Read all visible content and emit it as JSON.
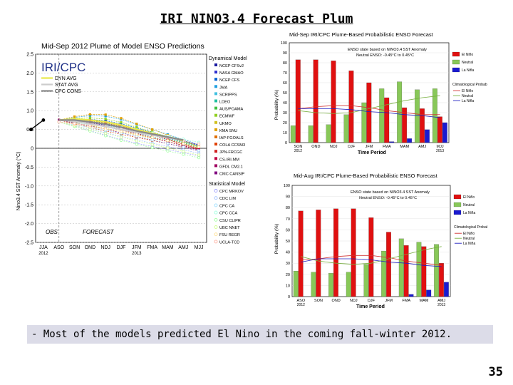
{
  "slide": {
    "title": "IRI NINO3.4 Forecast Plum",
    "caption": "- Most of the models predicted El Nino in the coming fall-winter 2012.",
    "page_number": "35",
    "iri_label": "IRI/CPC"
  },
  "chart_data": [
    {
      "type": "line",
      "title": "Mid-Sep 2012 Plume of Model ENSO Predictions",
      "ylabel": "Nino3.4 SST Anomaly (°C)",
      "ylim": [
        -2.5,
        2.5
      ],
      "yticks": [
        "2.5",
        "2.0",
        "1.5",
        "1.0",
        "0.5",
        "0",
        "-0.5",
        "-1.0",
        "-1.5",
        "-2.0",
        "-2.5"
      ],
      "categories": [
        "JJA",
        "ASO",
        "SON",
        "OND",
        "NDJ",
        "DJF",
        "JFM",
        "FMA",
        "MAM",
        "AMJ",
        "MJJ"
      ],
      "xtick_labels": [
        "JJA",
        "ASO",
        "SON",
        "OND",
        "NDJ",
        "DJF",
        "JFM",
        "FMA",
        "MAM",
        "AMJ",
        "MJJ"
      ],
      "xsub_labels": [
        "2012",
        "2013"
      ],
      "obs_label": "OBS",
      "forecast_label": "FORECAST",
      "observed": [
        0.5,
        0.75
      ],
      "averages": [
        {
          "name": "DYN AVG",
          "color": "#e8e84a",
          "values": [
            0.75,
            0.78,
            0.75,
            0.7,
            0.62,
            0.5,
            0.4,
            0.3,
            0.2
          ]
        },
        {
          "name": "STAT AVG",
          "color": "#cccccc",
          "values": [
            0.75,
            0.72,
            0.65,
            0.58,
            0.5,
            0.42,
            0.35,
            0.28,
            0.22
          ]
        },
        {
          "name": "CPC CONS",
          "color": "#888888",
          "values": [
            0.75,
            0.75,
            0.7,
            0.64,
            0.56,
            0.46,
            0.38,
            0.3,
            0.22
          ]
        }
      ],
      "dynamical_title": "Dynamical Model",
      "dynamical_models": [
        {
          "name": "NCEP CFSv2",
          "color": "#1a1aa0"
        },
        {
          "name": "NASA GMAO",
          "color": "#3030d0"
        },
        {
          "name": "NCEP CFS",
          "color": "#0060d0"
        },
        {
          "name": "JMA",
          "color": "#20a0e0"
        },
        {
          "name": "SCRIPPS",
          "color": "#40c0e0"
        },
        {
          "name": "LDEO",
          "color": "#20c0a0"
        },
        {
          "name": "AUS/POAMA",
          "color": "#40c040"
        },
        {
          "name": "ECMWF",
          "color": "#90d020"
        },
        {
          "name": "UKMO",
          "color": "#d0c020"
        },
        {
          "name": "KMA SNU",
          "color": "#e0a000"
        },
        {
          "name": "IAP-FGOALS",
          "color": "#e07000"
        },
        {
          "name": "COLA CCSM3",
          "color": "#e04000"
        },
        {
          "name": "JPN-FRCGC",
          "color": "#d02020"
        },
        {
          "name": "CS-IRI-MM",
          "color": "#c00040"
        },
        {
          "name": "GFDL CM2.1",
          "color": "#a00060"
        },
        {
          "name": "CMC CANSIP",
          "color": "#800080"
        }
      ],
      "statistical_title": "Statistical Model",
      "statistical_models": [
        {
          "name": "CPC MRKOV",
          "color": "#a0a0ff"
        },
        {
          "name": "CDC LIM",
          "color": "#a0c0ff"
        },
        {
          "name": "CPC CA",
          "color": "#a0e0ff"
        },
        {
          "name": "CPC CCA",
          "color": "#a0ffe0"
        },
        {
          "name": "CSU CLIPR",
          "color": "#a0ffa0"
        },
        {
          "name": "UBC NNET",
          "color": "#d0ff90"
        },
        {
          "name": "FSU REGR",
          "color": "#ffe090"
        },
        {
          "name": "UCLA-TCD",
          "color": "#ffb0a0"
        }
      ]
    },
    {
      "type": "bar",
      "title": "Mid-Sep IRI/CPC Plume-Based Probabilistic ENSO Forecast",
      "subtitle": "ENSO state based on NINO3.4 SST Anomaly",
      "neutral_note": "Neutral ENSO: -0.45°C to 0.45°C",
      "ylabel": "Probability (%)",
      "xlabel": "Time Period",
      "ylim": [
        0,
        100
      ],
      "yticks": [
        "0",
        "10",
        "20",
        "30",
        "40",
        "50",
        "60",
        "70",
        "80",
        "90",
        "100"
      ],
      "categories": [
        "SON",
        "OND",
        "NDJ",
        "DJF",
        "JFM",
        "FMA",
        "MAM",
        "AMJ",
        "MJJ"
      ],
      "xsub_labels": [
        "2012",
        "2013"
      ],
      "series": [
        {
          "name": "La Niña",
          "color": "#1a1ad0",
          "values": [
            0,
            0,
            0,
            0,
            0,
            1,
            4,
            13,
            20
          ]
        },
        {
          "name": "Neutral",
          "color": "#88c858",
          "values": [
            17,
            17,
            18,
            28,
            40,
            54,
            61,
            53,
            54
          ]
        },
        {
          "name": "El Niño",
          "color": "#e01010",
          "values": [
            83,
            83,
            82,
            72,
            60,
            45,
            35,
            34,
            26
          ]
        }
      ],
      "legend_items": [
        "El Niño",
        "Neutral",
        "La Niña"
      ],
      "clim_title": "Climatological Probability:",
      "clim_items": [
        "El Niño",
        "Neutral",
        "La Niña"
      ],
      "climatology": {
        "El Niño": [
          34,
          36,
          37,
          37,
          35,
          32,
          30,
          28,
          28
        ],
        "Neutral": [
          32,
          30,
          29,
          30,
          34,
          38,
          42,
          45,
          47
        ],
        "La Niña": [
          34,
          34,
          34,
          33,
          31,
          30,
          28,
          27,
          25
        ]
      }
    },
    {
      "type": "bar",
      "title": "Mid-Aug IRI/CPC Plume-Based Probabilistic ENSO Forecast",
      "subtitle": "ENSO state based on NINO3.4 SST Anomaly",
      "neutral_note": "Neutral ENSO: -0.45°C to 0.45°C",
      "ylabel": "Probability (%)",
      "xlabel": "Time Period",
      "ylim": [
        0,
        100
      ],
      "yticks": [
        "0",
        "10",
        "20",
        "30",
        "40",
        "50",
        "60",
        "70",
        "80",
        "90",
        "100"
      ],
      "categories": [
        "ASO",
        "SON",
        "OND",
        "NDJ",
        "DJF",
        "JFM",
        "FMA",
        "MAM",
        "AMJ"
      ],
      "xsub_labels": [
        "2012",
        "2013"
      ],
      "series": [
        {
          "name": "La Niña",
          "color": "#1a1ad0",
          "values": [
            0,
            0,
            0,
            0,
            0,
            0,
            2,
            6,
            13
          ]
        },
        {
          "name": "Neutral",
          "color": "#88c858",
          "values": [
            23,
            22,
            21,
            22,
            29,
            41,
            52,
            49,
            47
          ]
        },
        {
          "name": "El Niño",
          "color": "#e01010",
          "values": [
            77,
            78,
            79,
            79,
            71,
            58,
            46,
            45,
            30
          ]
        }
      ],
      "legend_items": [
        "El Niño",
        "Neutral",
        "La Niña"
      ],
      "clim_title": "Climatological Probability:",
      "clim_items": [
        "El Niño",
        "Neutral",
        "La Niña"
      ],
      "climatology": {
        "El Niño": [
          33,
          34,
          36,
          37,
          37,
          35,
          32,
          30,
          28
        ],
        "Neutral": [
          36,
          32,
          30,
          29,
          30,
          34,
          38,
          42,
          45
        ],
        "La Niña": [
          31,
          34,
          34,
          34,
          33,
          31,
          30,
          28,
          27
        ]
      }
    }
  ]
}
